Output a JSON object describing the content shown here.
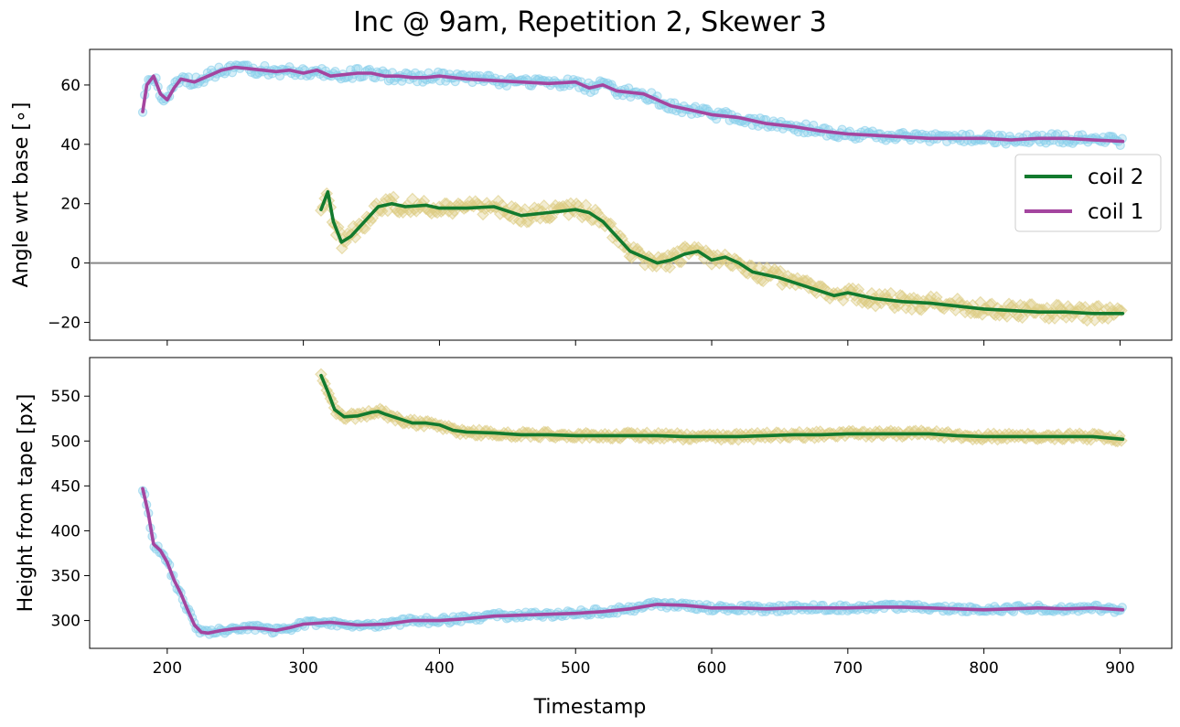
{
  "chart_data": {
    "title": "Inc @ 9am, Repetition 2, Skewer 3",
    "xlabel": "Timestamp",
    "xlim": [
      143,
      938
    ],
    "xticks": [
      200,
      300,
      400,
      500,
      600,
      700,
      800,
      900
    ],
    "colors": {
      "coil1_line": "#a4459f",
      "coil1_marker": "#87ceeb",
      "coil2_line": "#127a2e",
      "coil2_marker": "#dccc82",
      "zero_line": "#888888"
    },
    "panels": [
      {
        "type": "line",
        "ylabel": "Angle wrt base [∘]",
        "ylim": [
          -26,
          72
        ],
        "yticks": [
          -20,
          0,
          20,
          40,
          60
        ],
        "zero_line": true,
        "legend": {
          "placement": "right",
          "entries": [
            "coil 2",
            "coil 1"
          ]
        },
        "series": [
          {
            "name": "coil 1",
            "marker": "circle",
            "x": [
              182,
              185,
              190,
              195,
              200,
              205,
              210,
              220,
              230,
              240,
              250,
              260,
              270,
              280,
              290,
              300,
              310,
              320,
              330,
              340,
              350,
              360,
              370,
              380,
              390,
              400,
              420,
              440,
              460,
              480,
              500,
              510,
              520,
              530,
              540,
              550,
              560,
              570,
              580,
              590,
              600,
              620,
              640,
              660,
              680,
              700,
              720,
              740,
              760,
              780,
              800,
              820,
              840,
              860,
              880,
              902
            ],
            "y": [
              51,
              60,
              63,
              57,
              55,
              59,
              62,
              61,
              63,
              65,
              66,
              65.5,
              65,
              64.5,
              65,
              64,
              65,
              63,
              63.5,
              64,
              64,
              63,
              63,
              62.5,
              62.5,
              63,
              62,
              61.5,
              61,
              60.5,
              61,
              59,
              60,
              58,
              57.5,
              57,
              55,
              53,
              52,
              51,
              50,
              49,
              47,
              46,
              44.5,
              43.5,
              43,
              42.5,
              42,
              42,
              42,
              41.5,
              42,
              42,
              41.5,
              41
            ]
          },
          {
            "name": "coil 2",
            "marker": "diamond",
            "x": [
              313,
              318,
              322,
              328,
              335,
              345,
              355,
              365,
              375,
              390,
              400,
              420,
              440,
              460,
              480,
              500,
              510,
              520,
              530,
              540,
              550,
              560,
              570,
              580,
              590,
              600,
              610,
              620,
              630,
              650,
              670,
              690,
              700,
              720,
              740,
              760,
              780,
              800,
              820,
              840,
              860,
              880,
              902
            ],
            "y": [
              18,
              24,
              14,
              7,
              9,
              14,
              19,
              20,
              19,
              19.5,
              18.5,
              18.5,
              19,
              16,
              17,
              18,
              17,
              14,
              9,
              4,
              2,
              0,
              1,
              3,
              4,
              1,
              2,
              0,
              -3,
              -5,
              -8,
              -11,
              -10,
              -12,
              -13,
              -13.5,
              -14.5,
              -15.5,
              -16,
              -16.5,
              -16.5,
              -17,
              -17
            ]
          }
        ]
      },
      {
        "type": "line",
        "ylabel": "Height from tape [px]",
        "ylim": [
          269,
          593
        ],
        "yticks": [
          300,
          350,
          400,
          450,
          500,
          550
        ],
        "zero_line": false,
        "series": [
          {
            "name": "coil 1",
            "marker": "circle",
            "x": [
              182,
              186,
              190,
              195,
              200,
              205,
              210,
              215,
              220,
              225,
              230,
              240,
              250,
              260,
              270,
              280,
              290,
              300,
              320,
              340,
              360,
              380,
              400,
              420,
              440,
              460,
              480,
              500,
              520,
              540,
              560,
              580,
              600,
              620,
              640,
              660,
              680,
              700,
              720,
              740,
              760,
              780,
              800,
              820,
              840,
              860,
              880,
              902
            ],
            "y": [
              447,
              420,
              385,
              378,
              365,
              345,
              330,
              312,
              295,
              287,
              286,
              289,
              291,
              292,
              291,
              289,
              292,
              296,
              298,
              295,
              296,
              300,
              300,
              302,
              305,
              306,
              307,
              308,
              310,
              313,
              318,
              317,
              314,
              314,
              313,
              314,
              314,
              314,
              315,
              315,
              314,
              313,
              312,
              313,
              314,
              313,
              314,
              312
            ]
          },
          {
            "name": "coil 2",
            "marker": "diamond",
            "x": [
              313,
              318,
              323,
              330,
              340,
              350,
              355,
              360,
              370,
              380,
              390,
              400,
              410,
              420,
              440,
              460,
              480,
              500,
              520,
              540,
              560,
              580,
              600,
              620,
              640,
              660,
              680,
              700,
              720,
              740,
              760,
              780,
              800,
              820,
              840,
              860,
              880,
              902
            ],
            "y": [
              573,
              555,
              535,
              527,
              528,
              532,
              533,
              530,
              525,
              520,
              520,
              518,
              512,
              510,
              509,
              507,
              507,
              506,
              506,
              506,
              506,
              505,
              505,
              505,
              506,
              507,
              507,
              508,
              508,
              508,
              508,
              506,
              505,
              505,
              505,
              505,
              505,
              502
            ]
          }
        ]
      }
    ]
  }
}
